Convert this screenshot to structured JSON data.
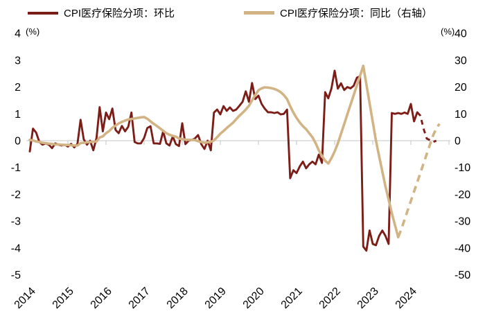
{
  "legend": [
    {
      "label": "CPI医疗保险分项：环比",
      "color": "#7d1d17"
    },
    {
      "label": "CPI医疗保险分项：同比（右轴）",
      "color": "#d2b384"
    }
  ],
  "chart_data": {
    "type": "line",
    "title": "",
    "left_axis": {
      "unit": "(%)",
      "min": -5,
      "max": 4,
      "ticks": [
        4,
        3,
        2,
        1,
        0,
        -1,
        -2,
        -3,
        -4,
        -5
      ]
    },
    "right_axis": {
      "unit": "(%)",
      "min": -50,
      "max": 40,
      "ticks": [
        40,
        30,
        20,
        10,
        0,
        -10,
        -20,
        -30,
        -40,
        -50
      ]
    },
    "x_axis": {
      "tick_years": [
        2014,
        2015,
        2016,
        2017,
        2018,
        2019,
        2020,
        2021,
        2022,
        2023,
        2024
      ],
      "start_year": 2014,
      "end_year": 2025.2,
      "grid": "zero-line-only"
    },
    "series": [
      {
        "name": "CPI医疗保险分项：环比",
        "axis": "left",
        "color": "#7d1d17",
        "line_style": "solid",
        "start": "2014-01",
        "monthly_values": [
          -0.4,
          0.45,
          0.3,
          -0.05,
          -0.15,
          -0.1,
          -0.15,
          -0.28,
          -0.1,
          -0.15,
          -0.18,
          -0.15,
          -0.22,
          -0.12,
          -0.25,
          -0.12,
          0.78,
          0.05,
          -0.15,
          0.0,
          -0.36,
          0.1,
          1.25,
          0.35,
          1.05,
          0.8,
          1.2,
          0.4,
          0.28,
          0.55,
          0.35,
          0.52,
          1.05,
          -0.05,
          -0.1,
          -0.1,
          0.1,
          0.47,
          0.54,
          -0.1,
          -0.1,
          -0.12,
          0.35,
          -0.1,
          -0.18,
          0.16,
          -0.13,
          -0.2,
          0.65,
          -0.13,
          0.0,
          0.03,
          0.08,
          0.21,
          -0.13,
          -0.31,
          0.0,
          -0.36,
          1.05,
          1.16,
          0.98,
          1.29,
          1.11,
          1.24,
          1.11,
          1.16,
          1.3,
          1.45,
          1.84,
          1.45,
          2.15,
          1.55,
          1.68,
          1.37,
          1.19,
          1.06,
          1.06,
          1.03,
          1.06,
          0.98,
          1.0,
          1.16,
          -1.4,
          -1.1,
          -1.21,
          -0.96,
          -0.78,
          -1.03,
          -0.88,
          -0.78,
          -0.88,
          -0.52,
          -0.83,
          1.81,
          1.58,
          1.95,
          2.61,
          1.94,
          2.14,
          1.89,
          2.0,
          1.95,
          2.05,
          2.35,
          2.4,
          -3.95,
          -4.1,
          -3.35,
          -3.85,
          -3.9,
          -3.55,
          -3.35,
          -3.55,
          -3.85,
          1.03,
          1.0,
          1.03,
          1.0,
          1.05,
          1.0,
          1.37,
          0.72,
          1.06
        ]
      },
      {
        "name": "CPI医疗保险分项：环比",
        "axis": "left",
        "color": "#7d1d17",
        "line_style": "dashed",
        "start": "2024-03",
        "monthly_values": [
          1.06,
          0.93,
          0.45,
          0.08,
          0.02,
          -0.05,
          0.0
        ]
      },
      {
        "name": "CPI医疗保险分项：同比（右轴）",
        "axis": "right",
        "color": "#d2b384",
        "line_style": "solid",
        "start": "2014-01",
        "monthly_values": [
          0.3,
          0.1,
          -0.3,
          -0.5,
          -0.8,
          -0.9,
          -1.1,
          -1.2,
          -1.4,
          -1.4,
          -1.5,
          -1.6,
          -1.6,
          -1.7,
          -1.8,
          -1.8,
          -0.9,
          -0.8,
          -0.6,
          -0.5,
          -0.4,
          -0.3,
          1.2,
          1.6,
          2.8,
          3.6,
          4.8,
          5.6,
          6.4,
          7.0,
          7.5,
          7.9,
          8.1,
          8.3,
          8.5,
          8.7,
          8.8,
          8.2,
          7.2,
          6.3,
          5.5,
          4.6,
          3.7,
          2.8,
          2.2,
          1.8,
          1.5,
          0.8,
          0.6,
          0.4,
          0.3,
          0.3,
          0.2,
          -0.2,
          -0.5,
          -0.8,
          -0.6,
          -0.4,
          0.1,
          1.3,
          2.6,
          3.6,
          4.7,
          5.7,
          6.7,
          8.0,
          9.3,
          10.4,
          11.6,
          13.0,
          15.0,
          17.0,
          18.8,
          19.5,
          19.9,
          19.8,
          19.6,
          19.3,
          18.8,
          18.1,
          17.0,
          15.5,
          12.9,
          10.5,
          8.5,
          6.8,
          5.4,
          4.3,
          2.8,
          1.3,
          -0.9,
          -3.6,
          -5.7,
          -7.5,
          -8.5,
          -6.5,
          -4.0,
          -1.0,
          2.6,
          6.2,
          9.8,
          13.4,
          17.0,
          20.6,
          24.2,
          27.9,
          21.0,
          14.0,
          7.0,
          0.0,
          -5.8,
          -11.5,
          -17.0,
          -22.0,
          -27.0,
          -31.5,
          -36.0
        ]
      },
      {
        "name": "CPI医疗保险分项：同比（右轴）",
        "axis": "right",
        "color": "#d2b384",
        "line_style": "dashed",
        "start": "2023-09",
        "monthly_values": [
          -36.0,
          -33.0,
          -29.5,
          -26.0,
          -22.5,
          -19.0,
          -15.5,
          -12.0,
          -8.5,
          -5.0,
          -1.5,
          2.0,
          4.5,
          6.3
        ]
      }
    ]
  }
}
